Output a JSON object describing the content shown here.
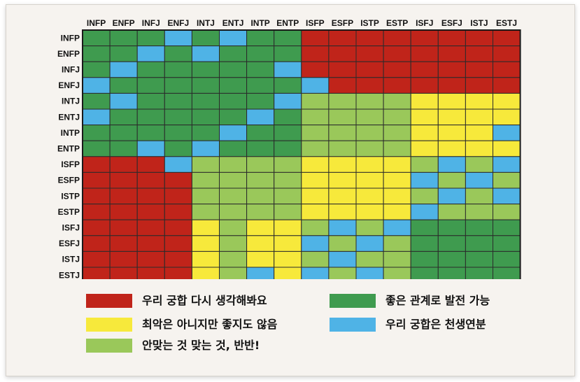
{
  "chart_data": {
    "type": "heatmap",
    "title": "",
    "x_labels": [
      "INFP",
      "ENFP",
      "INFJ",
      "ENFJ",
      "INTJ",
      "ENTJ",
      "INTP",
      "ENTP",
      "ISFP",
      "ESFP",
      "ISTP",
      "ESTP",
      "ISFJ",
      "ESFJ",
      "ISTJ",
      "ESTJ"
    ],
    "y_labels": [
      "INFP",
      "ENFP",
      "INFJ",
      "ENFJ",
      "INTJ",
      "ENTJ",
      "INTP",
      "ENTP",
      "ISFP",
      "ESFP",
      "ISTP",
      "ESTP",
      "ISFJ",
      "ESFJ",
      "ISTJ",
      "ESTJ"
    ],
    "levels": {
      "R": {
        "label": "우리 궁합 다시 생각해봐요",
        "color": "#c0241a"
      },
      "G": {
        "label": "좋은 관계로 발전 가능",
        "color": "#3f9b4f"
      },
      "Y": {
        "label": "최악은 아니지만 좋지도 않음",
        "color": "#f7e93b"
      },
      "L": {
        "label": "안맞는 것 맞는 것, 반반!",
        "color": "#9ac85a"
      },
      "B": {
        "label": "우리 궁합은 천생연분",
        "color": "#4fb3e6"
      }
    },
    "legend_order": [
      "R",
      "Y",
      "L",
      "G",
      "B"
    ],
    "grid": [
      [
        "G",
        "G",
        "G",
        "B",
        "G",
        "B",
        "G",
        "G",
        "R",
        "R",
        "R",
        "R",
        "R",
        "R",
        "R",
        "R"
      ],
      [
        "G",
        "G",
        "B",
        "G",
        "B",
        "G",
        "G",
        "G",
        "R",
        "R",
        "R",
        "R",
        "R",
        "R",
        "R",
        "R"
      ],
      [
        "G",
        "B",
        "G",
        "G",
        "G",
        "G",
        "G",
        "B",
        "R",
        "R",
        "R",
        "R",
        "R",
        "R",
        "R",
        "R"
      ],
      [
        "B",
        "G",
        "G",
        "G",
        "G",
        "G",
        "G",
        "G",
        "B",
        "R",
        "R",
        "R",
        "R",
        "R",
        "R",
        "R"
      ],
      [
        "G",
        "B",
        "G",
        "G",
        "G",
        "G",
        "G",
        "B",
        "L",
        "L",
        "L",
        "L",
        "Y",
        "Y",
        "Y",
        "Y"
      ],
      [
        "B",
        "G",
        "G",
        "G",
        "G",
        "G",
        "B",
        "G",
        "L",
        "L",
        "L",
        "L",
        "Y",
        "Y",
        "Y",
        "Y"
      ],
      [
        "G",
        "G",
        "G",
        "G",
        "G",
        "B",
        "G",
        "G",
        "L",
        "L",
        "L",
        "L",
        "Y",
        "Y",
        "Y",
        "B"
      ],
      [
        "G",
        "G",
        "B",
        "G",
        "B",
        "G",
        "G",
        "G",
        "L",
        "L",
        "L",
        "L",
        "Y",
        "Y",
        "Y",
        "Y"
      ],
      [
        "R",
        "R",
        "R",
        "B",
        "L",
        "L",
        "L",
        "L",
        "Y",
        "Y",
        "Y",
        "Y",
        "L",
        "B",
        "L",
        "B"
      ],
      [
        "R",
        "R",
        "R",
        "R",
        "L",
        "L",
        "L",
        "L",
        "Y",
        "Y",
        "Y",
        "Y",
        "B",
        "L",
        "B",
        "L"
      ],
      [
        "R",
        "R",
        "R",
        "R",
        "L",
        "L",
        "L",
        "L",
        "Y",
        "Y",
        "Y",
        "Y",
        "L",
        "B",
        "L",
        "B"
      ],
      [
        "R",
        "R",
        "R",
        "R",
        "L",
        "L",
        "L",
        "L",
        "Y",
        "Y",
        "Y",
        "Y",
        "B",
        "L",
        "L",
        "L"
      ],
      [
        "R",
        "R",
        "R",
        "R",
        "Y",
        "L",
        "Y",
        "Y",
        "L",
        "B",
        "L",
        "B",
        "G",
        "G",
        "G",
        "G"
      ],
      [
        "R",
        "R",
        "R",
        "R",
        "Y",
        "L",
        "Y",
        "Y",
        "B",
        "L",
        "B",
        "L",
        "G",
        "G",
        "G",
        "G"
      ],
      [
        "R",
        "R",
        "R",
        "R",
        "Y",
        "L",
        "Y",
        "Y",
        "L",
        "B",
        "L",
        "L",
        "G",
        "G",
        "G",
        "G"
      ],
      [
        "R",
        "R",
        "R",
        "R",
        "Y",
        "L",
        "B",
        "Y",
        "B",
        "L",
        "B",
        "L",
        "G",
        "G",
        "G",
        "G"
      ]
    ]
  }
}
